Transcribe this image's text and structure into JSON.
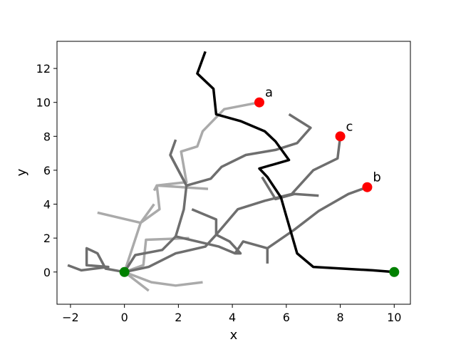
{
  "chart_data": {
    "type": "line",
    "xlabel": "x",
    "ylabel": "y",
    "xlim": [
      -2.5,
      10.6
    ],
    "ylim": [
      -1.9,
      13.6
    ],
    "xticks": [
      -2,
      0,
      2,
      4,
      6,
      8,
      10
    ],
    "yticks": [
      0,
      2,
      4,
      6,
      8,
      10,
      12
    ],
    "xtick_labels": [
      "−2",
      "0",
      "2",
      "4",
      "6",
      "8",
      "10"
    ],
    "ytick_labels": [
      "0",
      "2",
      "4",
      "6",
      "8",
      "10",
      "12"
    ],
    "grid": false,
    "colors": {
      "light": "#aaaaaa",
      "mid": "#6e6e6e",
      "dark": "#555555",
      "main": "#000000",
      "start": "#008000",
      "goal": "#ff0000"
    },
    "series": [
      {
        "shade": "light",
        "points": [
          [
            0,
            0
          ],
          [
            0.6,
            2.9
          ],
          [
            1.3,
            3.7
          ],
          [
            1.2,
            5.1
          ],
          [
            2.3,
            5.3
          ],
          [
            2.1,
            7.1
          ],
          [
            2.7,
            7.4
          ],
          [
            2.9,
            8.3
          ],
          [
            3.7,
            9.6
          ],
          [
            5.0,
            10.0
          ]
        ]
      },
      {
        "shade": "light",
        "points": [
          [
            0,
            0
          ],
          [
            1.0,
            -0.6
          ],
          [
            1.9,
            -0.8
          ],
          [
            2.9,
            -0.6
          ]
        ]
      },
      {
        "shade": "light",
        "points": [
          [
            0,
            0
          ],
          [
            0.7,
            0.4
          ],
          [
            0.8,
            1.9
          ],
          [
            2.4,
            2.0
          ]
        ]
      },
      {
        "shade": "light",
        "points": [
          [
            -1.0,
            3.5
          ],
          [
            0.6,
            2.9
          ],
          [
            1.1,
            4.0
          ]
        ]
      },
      {
        "shade": "light",
        "points": [
          [
            1.1,
            4.8
          ],
          [
            1.2,
            5.1
          ],
          [
            3.1,
            4.9
          ]
        ]
      },
      {
        "shade": "light",
        "points": [
          [
            0,
            0
          ],
          [
            0.9,
            -1.1
          ]
        ]
      },
      {
        "shade": "mid",
        "points": [
          [
            0,
            0
          ],
          [
            0.9,
            0.3
          ],
          [
            1.9,
            1.1
          ],
          [
            3.0,
            1.5
          ],
          [
            3.4,
            2.2
          ],
          [
            4.2,
            3.7
          ],
          [
            5.2,
            4.2
          ],
          [
            6.2,
            4.6
          ],
          [
            7.0,
            6.0
          ],
          [
            7.9,
            6.7
          ],
          [
            8.0,
            8.0
          ]
        ]
      },
      {
        "shade": "mid",
        "points": [
          [
            0,
            0
          ],
          [
            0.4,
            1.0
          ],
          [
            1.4,
            1.3
          ],
          [
            1.9,
            2.1
          ],
          [
            3.5,
            1.5
          ],
          [
            4.1,
            1.1
          ],
          [
            4.3,
            1.1
          ],
          [
            3.9,
            1.8
          ],
          [
            3.4,
            2.2
          ],
          [
            3.4,
            3.1
          ],
          [
            2.5,
            3.7
          ]
        ]
      },
      {
        "shade": "mid",
        "points": [
          [
            1.9,
            2.1
          ],
          [
            2.2,
            3.7
          ],
          [
            2.3,
            5.1
          ],
          [
            1.7,
            6.9
          ],
          [
            1.9,
            7.8
          ]
        ]
      },
      {
        "shade": "mid",
        "points": [
          [
            1.7,
            6.9
          ],
          [
            2.3,
            5.1
          ],
          [
            3.2,
            5.5
          ],
          [
            3.6,
            6.2
          ],
          [
            4.5,
            6.9
          ],
          [
            5.6,
            7.2
          ],
          [
            6.4,
            7.6
          ],
          [
            6.9,
            8.5
          ],
          [
            6.1,
            9.3
          ]
        ]
      },
      {
        "shade": "mid",
        "points": [
          [
            5.1,
            5.6
          ],
          [
            5.6,
            4.3
          ],
          [
            6.3,
            4.6
          ],
          [
            7.2,
            4.5
          ]
        ]
      },
      {
        "shade": "mid",
        "points": [
          [
            0,
            0
          ],
          [
            -0.7,
            0.2
          ],
          [
            -1.0,
            1.1
          ],
          [
            -1.4,
            1.4
          ],
          [
            -1.4,
            0.4
          ],
          [
            -0.6,
            0.3
          ],
          [
            -1.6,
            0.1
          ],
          [
            -2.1,
            0.4
          ]
        ]
      },
      {
        "shade": "mid",
        "points": [
          [
            4.1,
            1.1
          ],
          [
            4.4,
            1.8
          ],
          [
            5.3,
            1.4
          ],
          [
            6.3,
            2.5
          ],
          [
            7.2,
            3.6
          ],
          [
            8.3,
            4.6
          ],
          [
            9.0,
            5.0
          ]
        ]
      },
      {
        "shade": "mid",
        "points": [
          [
            5.3,
            1.4
          ],
          [
            5.3,
            0.5
          ]
        ]
      },
      {
        "shade": "main",
        "points": [
          [
            10.0,
            0.0
          ],
          [
            9.2,
            0.1
          ],
          [
            7.0,
            0.3
          ],
          [
            6.4,
            1.1
          ],
          [
            6.2,
            2.2
          ],
          [
            6.0,
            3.3
          ],
          [
            5.8,
            4.4
          ],
          [
            5.3,
            5.6
          ],
          [
            5.0,
            6.1
          ],
          [
            6.1,
            6.6
          ],
          [
            5.6,
            7.7
          ],
          [
            5.2,
            8.3
          ],
          [
            4.3,
            8.9
          ],
          [
            3.4,
            9.3
          ],
          [
            3.3,
            10.8
          ],
          [
            2.7,
            11.7
          ],
          [
            3.0,
            13.0
          ]
        ]
      }
    ],
    "points": [
      {
        "label": "",
        "x": 0,
        "y": 0,
        "shade": "start"
      },
      {
        "label": "",
        "x": 10,
        "y": 0,
        "shade": "start"
      },
      {
        "label": "a",
        "x": 5,
        "y": 10,
        "shade": "goal"
      },
      {
        "label": "b",
        "x": 9,
        "y": 5,
        "shade": "goal"
      },
      {
        "label": "c",
        "x": 8,
        "y": 8,
        "shade": "goal"
      }
    ]
  }
}
